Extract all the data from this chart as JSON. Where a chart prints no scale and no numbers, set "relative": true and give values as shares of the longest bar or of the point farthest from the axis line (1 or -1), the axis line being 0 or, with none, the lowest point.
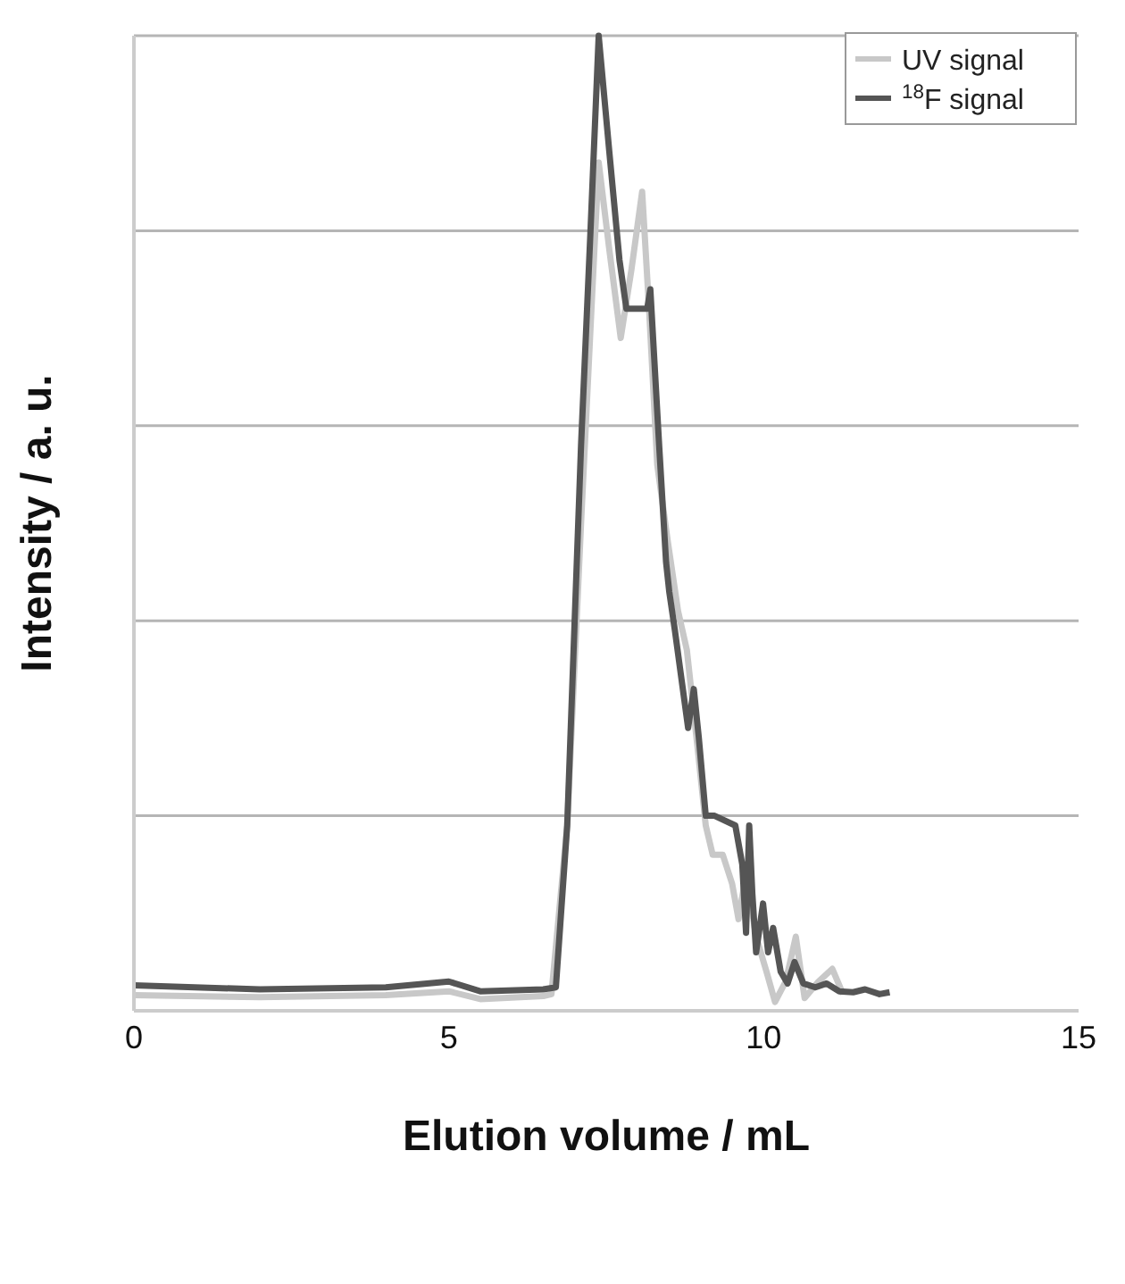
{
  "chart_data": {
    "type": "line",
    "xlabel": "Elution volume / mL",
    "ylabel": "Intensity / a. u.",
    "relative": true,
    "xlim": [
      0,
      15
    ],
    "xticks": [
      0,
      5,
      10,
      15
    ],
    "tick_labels": "x",
    "grid": "y",
    "legend": "top right",
    "marker": "none",
    "line_style": "solid",
    "series": [
      {
        "name": "UV signal",
        "color": "#c8c8c8",
        "x": [
          0,
          2,
          4,
          5,
          5.5,
          6.5,
          6.63,
          6.88,
          7.1,
          7.25,
          7.38,
          7.55,
          7.73,
          7.9,
          8.07,
          8.18,
          8.31,
          8.48,
          8.64,
          8.78,
          8.95,
          9.08,
          9.19,
          9.35,
          9.5,
          9.6,
          9.72,
          9.88,
          10.05,
          10.18,
          10.35,
          10.51,
          10.65,
          10.87,
          11.09,
          11.26
        ],
        "values": [
          0.016,
          0.014,
          0.016,
          0.02,
          0.012,
          0.015,
          0.017,
          0.19,
          0.5,
          0.7,
          0.87,
          0.78,
          0.69,
          0.76,
          0.84,
          0.72,
          0.56,
          0.48,
          0.41,
          0.37,
          0.27,
          0.19,
          0.16,
          0.16,
          0.13,
          0.094,
          0.14,
          0.076,
          0.039,
          0.009,
          0.03,
          0.076,
          0.013,
          0.03,
          0.043,
          0.017
        ]
      },
      {
        "name": "$^{18}$F signal",
        "color": "#555555",
        "x": [
          0,
          2,
          4,
          5,
          5.5,
          6.5,
          6.7,
          6.88,
          7.1,
          7.25,
          7.38,
          7.55,
          7.71,
          7.82,
          8.15,
          8.2,
          8.34,
          8.45,
          8.5,
          8.59,
          8.8,
          8.89,
          8.97,
          9.08,
          9.22,
          9.55,
          9.66,
          9.72,
          9.77,
          9.82,
          9.88,
          9.99,
          10.07,
          10.15,
          10.27,
          10.38,
          10.49,
          10.63,
          10.82,
          11.0,
          11.2,
          11.42,
          11.61,
          11.84,
          12.0
        ],
        "values": [
          0.026,
          0.022,
          0.024,
          0.03,
          0.02,
          0.022,
          0.024,
          0.19,
          0.58,
          0.8,
          1.0,
          0.88,
          0.77,
          0.72,
          0.72,
          0.74,
          0.58,
          0.46,
          0.43,
          0.39,
          0.29,
          0.33,
          0.28,
          0.2,
          0.2,
          0.19,
          0.15,
          0.08,
          0.19,
          0.12,
          0.06,
          0.11,
          0.06,
          0.085,
          0.04,
          0.028,
          0.05,
          0.028,
          0.024,
          0.028,
          0.02,
          0.019,
          0.022,
          0.017,
          0.019
        ]
      }
    ]
  }
}
